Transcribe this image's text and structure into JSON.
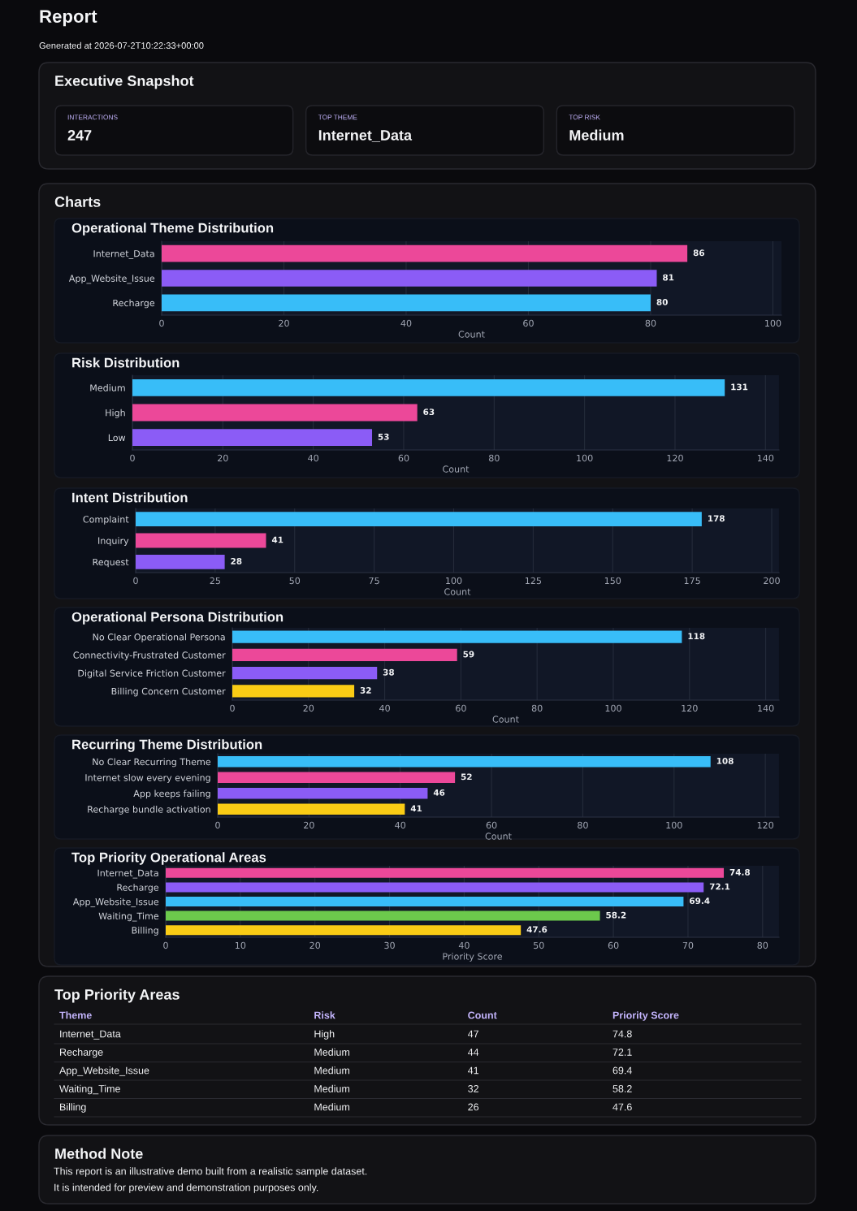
{
  "chart_data": [
    {
      "type": "other",
      "title": "Report",
      "subtitle": "Generated at 2026-07-2T10:22:33+00:00"
    },
    {
      "type": "other",
      "title": "Executive Snapshot",
      "categories": [
        "INTERACTIONS",
        "TOP THEME",
        "TOP RISK"
      ],
      "annotations": [
        "247",
        "Internet_Data",
        "Medium"
      ]
    },
    {
      "type": "other",
      "title": "Charts"
    },
    {
      "type": "bar",
      "orientation": "horizontal",
      "title": "Operational Theme Distribution",
      "xlabel": "Count",
      "categories": [
        "Internet_Data",
        "App_Website_Issue",
        "Recharge"
      ],
      "values": [
        86,
        81,
        80
      ],
      "colors": [
        "#ec4899",
        "#8b5cf6",
        "#38bdf8"
      ],
      "xlim": [
        0,
        101.4
      ],
      "xticks": [
        0,
        20,
        40,
        60,
        80,
        100
      ],
      "grid": "x",
      "data_labels": true
    },
    {
      "type": "bar",
      "orientation": "horizontal",
      "title": "Risk Distribution",
      "xlabel": "Count",
      "categories": [
        "Medium",
        "High",
        "Low"
      ],
      "values": [
        131,
        63,
        53
      ],
      "colors": [
        "#38bdf8",
        "#ec4899",
        "#8b5cf6"
      ],
      "xlim": [
        0,
        143
      ],
      "xticks": [
        0,
        20,
        40,
        60,
        80,
        100,
        120,
        140
      ],
      "grid": "x",
      "data_labels": true
    },
    {
      "type": "bar",
      "orientation": "horizontal",
      "title": "Intent Distribution",
      "xlabel": "Count",
      "categories": [
        "Complaint",
        "Inquiry",
        "Request"
      ],
      "values": [
        178,
        41,
        28
      ],
      "colors": [
        "#38bdf8",
        "#ec4899",
        "#8b5cf6"
      ],
      "xlim": [
        0,
        202.3
      ],
      "xticks": [
        0,
        25,
        50,
        75,
        100,
        125,
        150,
        175,
        200
      ],
      "grid": "x",
      "data_labels": true
    },
    {
      "type": "bar",
      "orientation": "horizontal",
      "title": "Operational Persona Distribution",
      "xlabel": "Count",
      "categories": [
        "No Clear Operational Persona",
        "Connectivity-Frustrated Customer",
        "Digital Service Friction Customer",
        "Billing Concern Customer"
      ],
      "values": [
        118,
        59,
        38,
        32
      ],
      "colors": [
        "#38bdf8",
        "#ec4899",
        "#8b5cf6",
        "#facc15"
      ],
      "xlim": [
        0,
        143.5
      ],
      "xticks": [
        0,
        20,
        40,
        60,
        80,
        100,
        120,
        140
      ],
      "grid": "x",
      "data_labels": true
    },
    {
      "type": "bar",
      "orientation": "horizontal",
      "title": "Recurring Theme Distribution",
      "xlabel": "Count",
      "categories": [
        "No Clear Recurring Theme",
        "Internet slow every evening",
        "App keeps failing",
        "Recharge bundle activation"
      ],
      "values": [
        108,
        52,
        46,
        41
      ],
      "colors": [
        "#38bdf8",
        "#ec4899",
        "#8b5cf6",
        "#facc15"
      ],
      "xlim": [
        0,
        123
      ],
      "xticks": [
        0,
        20,
        40,
        60,
        80,
        100,
        120
      ],
      "grid": "x",
      "data_labels": true
    },
    {
      "type": "bar",
      "orientation": "horizontal",
      "title": "Top Priority Operational Areas",
      "xlabel": "Priority Score",
      "categories": [
        "Internet_Data",
        "Recharge",
        "App_Website_Issue",
        "Waiting_Time",
        "Billing"
      ],
      "values": [
        74.8,
        72.1,
        69.4,
        58.2,
        47.6
      ],
      "colors": [
        "#ec4899",
        "#8b5cf6",
        "#38bdf8",
        "#6cc94c",
        "#facc15"
      ],
      "xlim": [
        0,
        82.2
      ],
      "xticks": [
        0,
        10,
        20,
        30,
        40,
        50,
        60,
        70,
        80
      ],
      "grid": "x",
      "data_labels": true
    },
    {
      "type": "other",
      "title": "Top Priority Areas",
      "categories": [
        "Theme",
        "Risk",
        "Count",
        "Priority Score"
      ],
      "annotations": [
        "Internet_Data",
        "High",
        "47",
        "74.8",
        "Recharge",
        "Medium",
        "44",
        "72.1",
        "App_Website_Issue",
        "Medium",
        "41",
        "69.4",
        "Waiting_Time",
        "Medium",
        "32",
        "58.2",
        "Billing",
        "Medium",
        "26",
        "47.6"
      ]
    },
    {
      "type": "other",
      "title": "Method Note",
      "annotations": [
        "This report is an illustrative demo built from a realistic sample dataset.",
        "It is intended for preview and demonstration purposes only."
      ]
    }
  ]
}
